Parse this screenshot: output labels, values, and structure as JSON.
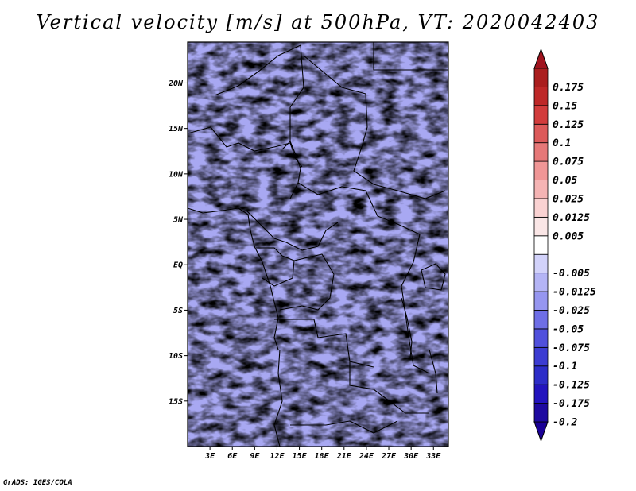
{
  "title": "Vertical velocity [m/s] at 500hPa, VT: 2020042403",
  "credit": "GrADS: IGES/COLA",
  "chart_data": {
    "type": "heatmap",
    "title": "Vertical velocity [m/s] at 500hPa, VT: 2020042403",
    "variable": "Vertical velocity",
    "units": "m/s",
    "level": "500hPa",
    "valid_time": "2020042403",
    "xlim": [
      0,
      35
    ],
    "ylim": [
      -20,
      24.5
    ],
    "x_ticks": [
      {
        "value": 3,
        "label": "3E"
      },
      {
        "value": 6,
        "label": "6E"
      },
      {
        "value": 9,
        "label": "9E"
      },
      {
        "value": 12,
        "label": "12E"
      },
      {
        "value": 15,
        "label": "15E"
      },
      {
        "value": 18,
        "label": "18E"
      },
      {
        "value": 21,
        "label": "21E"
      },
      {
        "value": 24,
        "label": "24E"
      },
      {
        "value": 27,
        "label": "27E"
      },
      {
        "value": 30,
        "label": "30E"
      },
      {
        "value": 33,
        "label": "33E"
      }
    ],
    "y_ticks": [
      {
        "value": 20,
        "label": "20N"
      },
      {
        "value": 15,
        "label": "15N"
      },
      {
        "value": 10,
        "label": "10N"
      },
      {
        "value": 5,
        "label": "5N"
      },
      {
        "value": 0,
        "label": "EQ"
      },
      {
        "value": -5,
        "label": "5S"
      },
      {
        "value": -10,
        "label": "10S"
      },
      {
        "value": -15,
        "label": "15S"
      }
    ],
    "colorbar": {
      "min_arrow": "#1a0096",
      "max_arrow": "#a0141e",
      "bins": [
        {
          "label": "-0.2",
          "color": "#1e0aa0"
        },
        {
          "label": "-0.175",
          "color": "#2314be"
        },
        {
          "label": "-0.125",
          "color": "#2d2dc8"
        },
        {
          "label": "-0.1",
          "color": "#3c3cd2"
        },
        {
          "label": "-0.075",
          "color": "#5050dc"
        },
        {
          "label": "-0.05",
          "color": "#6e6ee6"
        },
        {
          "label": "-0.025",
          "color": "#9696f0"
        },
        {
          "label": "-0.0125",
          "color": "#b4b4f5"
        },
        {
          "label": "-0.005",
          "color": "#d2d2fa"
        },
        {
          "label": "",
          "color": "#ffffff"
        },
        {
          "label": "0.005",
          "color": "#fae6e6"
        },
        {
          "label": "0.0125",
          "color": "#fad2d2"
        },
        {
          "label": "0.025",
          "color": "#f5b4b4"
        },
        {
          "label": "0.05",
          "color": "#f09696"
        },
        {
          "label": "0.075",
          "color": "#e67878"
        },
        {
          "label": "0.1",
          "color": "#dc5a5a"
        },
        {
          "label": "0.125",
          "color": "#d23c3c"
        },
        {
          "label": "0.15",
          "color": "#be2828"
        },
        {
          "label": "0.175",
          "color": "#aa1e1e"
        }
      ]
    }
  }
}
